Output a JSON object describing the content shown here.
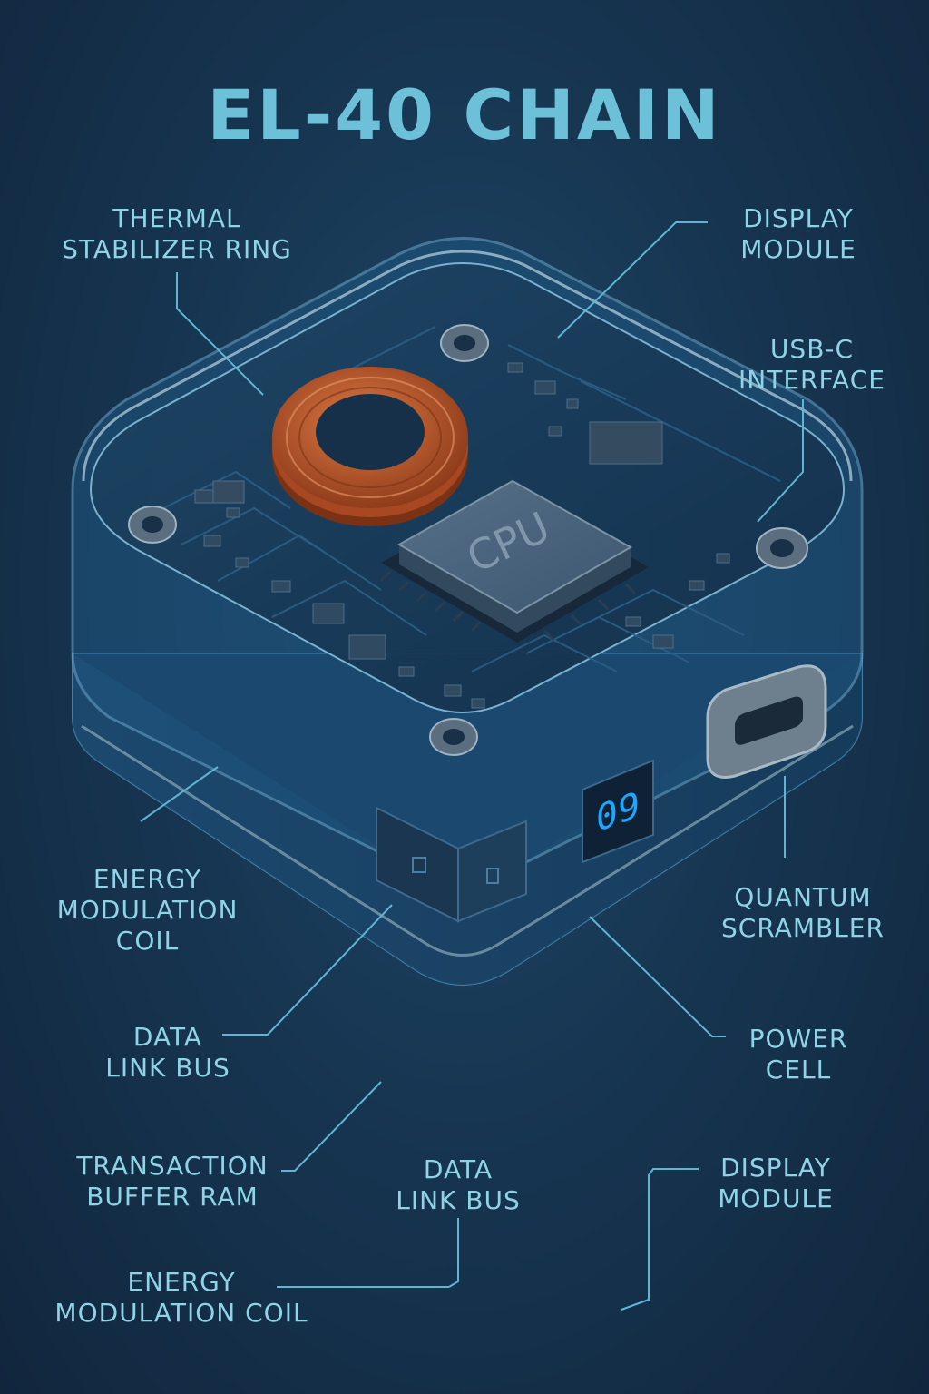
{
  "title": "EL-40 CHAIN",
  "device": {
    "cpu_label": "CPU",
    "display_value": "09"
  },
  "labels": {
    "thermal_stabilizer_ring": "THERMAL\nSTABILIZER RING",
    "display_module_top": "DISPLAY\nMODULE",
    "usb_c_interface": "USB-C\nINTERFACE",
    "energy_modulation_coil_left": "ENERGY\nMODULATION\nCOIL",
    "quantum_scrambler": "QUANTUM\nSCRAMBLER",
    "data_link_bus_left": "DATA\nLINK BUS",
    "power_cell": "POWER\nCELL",
    "transaction_buffer_ram": "TRANSACTION\nBUFFER RAM",
    "data_link_bus_bottom": "DATA\nLINK BUS",
    "display_module_bottom": "DISPLAY\nMODULE",
    "energy_modulation_coil_bottom": "ENERGY\nMODULATION COIL"
  },
  "colors": {
    "background": "#173652",
    "label_text": "#8fd3e6",
    "title_text": "#6cc0d8",
    "leader_line": "#5fb6d4",
    "coil": "#c0582a",
    "display_digits": "#1ea7ff"
  }
}
